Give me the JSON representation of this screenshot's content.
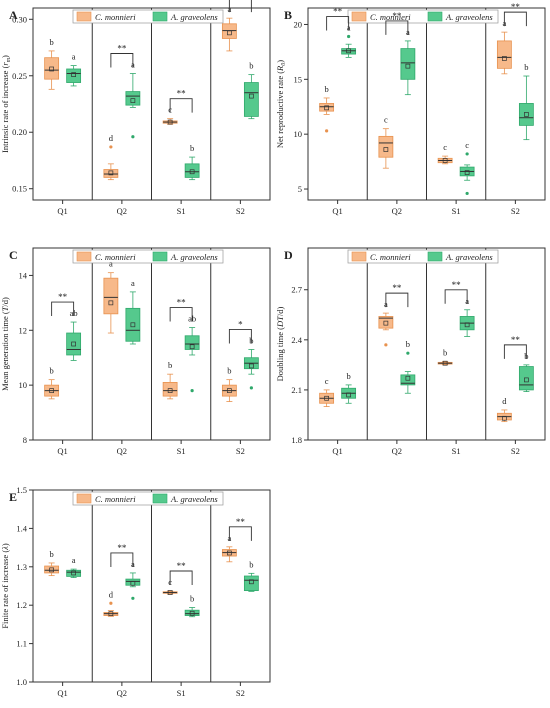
{
  "legend": {
    "series": [
      "C. monnieri",
      "A. graveolens"
    ],
    "colors": [
      "#f7b98a",
      "#55c98d"
    ],
    "edge_colors": [
      "#e8924f",
      "#2fa86b"
    ]
  },
  "chart_data": [
    {
      "type": "box",
      "panel": "A",
      "ylabel_prefix": "Intrinsic rate of increase (",
      "ylabel_symbol": "r",
      "ylabel_sub": "m",
      "ylabel_suffix": ")",
      "ylim": [
        0.14,
        0.31
      ],
      "yticks": [
        "0.15",
        "0.20",
        "0.25",
        "0.30"
      ],
      "categories": [
        "Q1",
        "Q2",
        "S1",
        "S2"
      ],
      "series": [
        {
          "name": "C. monnieri",
          "boxes": [
            {
              "min": 0.238,
              "q1": 0.247,
              "median": 0.255,
              "q3": 0.266,
              "max": 0.272,
              "mean": 0.256,
              "outliers": []
            },
            {
              "min": 0.158,
              "q1": 0.16,
              "median": 0.163,
              "q3": 0.167,
              "max": 0.172,
              "mean": 0.164,
              "outliers": [
                0.187
              ]
            },
            {
              "min": 0.207,
              "q1": 0.208,
              "median": 0.209,
              "q3": 0.21,
              "max": 0.212,
              "mean": 0.209,
              "outliers": []
            },
            {
              "min": 0.272,
              "q1": 0.283,
              "median": 0.29,
              "q3": 0.296,
              "max": 0.301,
              "mean": 0.288,
              "outliers": []
            }
          ]
        },
        {
          "name": "A. graveolens",
          "boxes": [
            {
              "min": 0.241,
              "q1": 0.244,
              "median": 0.252,
              "q3": 0.256,
              "max": 0.259,
              "mean": 0.251,
              "outliers": []
            },
            {
              "min": 0.222,
              "q1": 0.224,
              "median": 0.232,
              "q3": 0.236,
              "max": 0.252,
              "mean": 0.228,
              "outliers": [
                0.196
              ]
            },
            {
              "min": 0.158,
              "q1": 0.16,
              "median": 0.165,
              "q3": 0.172,
              "max": 0.178,
              "mean": 0.165,
              "outliers": []
            },
            {
              "min": 0.212,
              "q1": 0.214,
              "median": 0.235,
              "q3": 0.244,
              "max": 0.251,
              "mean": 0.232,
              "outliers": []
            }
          ]
        }
      ],
      "letters": [
        [
          "b",
          "a"
        ],
        [
          "d",
          "a"
        ],
        [
          "c",
          "b"
        ],
        [
          "a",
          "b"
        ]
      ],
      "significance": [
        "",
        "**",
        "**",
        "**"
      ]
    },
    {
      "type": "box",
      "panel": "B",
      "ylabel_prefix": "Net reproductive rate (",
      "ylabel_symbol": "R",
      "ylabel_sub": "0",
      "ylabel_suffix": ")",
      "ylim": [
        4,
        21.5
      ],
      "yticks": [
        "5",
        "10",
        "15",
        "20"
      ],
      "categories": [
        "Q1",
        "Q2",
        "S1",
        "S2"
      ],
      "series": [
        {
          "name": "C. monnieri",
          "boxes": [
            {
              "min": 11.8,
              "q1": 12.1,
              "median": 12.5,
              "q3": 12.8,
              "max": 13.3,
              "mean": 12.4,
              "outliers": [
                10.3
              ]
            },
            {
              "min": 6.9,
              "q1": 7.9,
              "median": 9.2,
              "q3": 9.8,
              "max": 10.5,
              "mean": 8.6,
              "outliers": []
            },
            {
              "min": 7.3,
              "q1": 7.4,
              "median": 7.6,
              "q3": 7.8,
              "max": 8.0,
              "mean": 7.6,
              "outliers": []
            },
            {
              "min": 15.5,
              "q1": 16.0,
              "median": 17.0,
              "q3": 18.5,
              "max": 19.3,
              "mean": 16.9,
              "outliers": []
            }
          ]
        },
        {
          "name": "A. graveolens",
          "boxes": [
            {
              "min": 17.0,
              "q1": 17.3,
              "median": 17.6,
              "q3": 17.8,
              "max": 18.2,
              "mean": 17.6,
              "outliers": [
                18.9
              ]
            },
            {
              "min": 13.6,
              "q1": 15.0,
              "median": 16.5,
              "q3": 17.8,
              "max": 18.5,
              "mean": 16.2,
              "outliers": []
            },
            {
              "min": 5.8,
              "q1": 6.2,
              "median": 6.6,
              "q3": 7.0,
              "max": 7.2,
              "mean": 6.5,
              "outliers": [
                4.6,
                8.2
              ]
            },
            {
              "min": 9.5,
              "q1": 10.8,
              "median": 11.5,
              "q3": 12.8,
              "max": 15.3,
              "mean": 11.8,
              "outliers": []
            }
          ]
        }
      ],
      "letters": [
        [
          "b",
          "a"
        ],
        [
          "c",
          "a"
        ],
        [
          "c",
          "c"
        ],
        [
          "a",
          "b"
        ]
      ],
      "significance": [
        "**",
        "**",
        "",
        "**"
      ]
    },
    {
      "type": "box",
      "panel": "C",
      "ylabel_prefix": "Mean generation time (",
      "ylabel_symbol": "T",
      "ylabel_sub": "",
      "ylabel_suffix": "/d)",
      "ylim": [
        8,
        15
      ],
      "yticks": [
        "8",
        "10",
        "12",
        "14"
      ],
      "categories": [
        "Q1",
        "Q2",
        "S1",
        "S2"
      ],
      "series": [
        {
          "name": "C. monnieri",
          "boxes": [
            {
              "min": 9.5,
              "q1": 9.6,
              "median": 9.8,
              "q3": 10.0,
              "max": 10.2,
              "mean": 9.8,
              "outliers": []
            },
            {
              "min": 11.9,
              "q1": 12.6,
              "median": 13.2,
              "q3": 13.9,
              "max": 14.1,
              "mean": 13.0,
              "outliers": []
            },
            {
              "min": 9.5,
              "q1": 9.6,
              "median": 9.8,
              "q3": 10.1,
              "max": 10.4,
              "mean": 9.8,
              "outliers": []
            },
            {
              "min": 9.4,
              "q1": 9.6,
              "median": 9.8,
              "q3": 10.0,
              "max": 10.2,
              "mean": 9.8,
              "outliers": []
            }
          ]
        },
        {
          "name": "A. graveolens",
          "boxes": [
            {
              "min": 10.9,
              "q1": 11.1,
              "median": 11.3,
              "q3": 11.9,
              "max": 12.3,
              "mean": 11.5,
              "outliers": []
            },
            {
              "min": 11.5,
              "q1": 11.6,
              "median": 12.0,
              "q3": 12.8,
              "max": 13.4,
              "mean": 12.2,
              "outliers": []
            },
            {
              "min": 11.1,
              "q1": 11.3,
              "median": 11.5,
              "q3": 11.8,
              "max": 12.1,
              "mean": 11.4,
              "outliers": [
                9.8
              ]
            },
            {
              "min": 10.4,
              "q1": 10.6,
              "median": 10.8,
              "q3": 11.0,
              "max": 11.3,
              "mean": 10.7,
              "outliers": [
                9.9
              ]
            }
          ]
        }
      ],
      "letters": [
        [
          "b",
          "ab"
        ],
        [
          "a",
          "a"
        ],
        [
          "b",
          "ab"
        ],
        [
          "b",
          "b"
        ]
      ],
      "significance": [
        "**",
        "",
        "**",
        "*"
      ]
    },
    {
      "type": "box",
      "panel": "D",
      "ylabel_prefix": "Doubling time (",
      "ylabel_symbol": "DT",
      "ylabel_sub": "",
      "ylabel_suffix": "/d)",
      "ylim": [
        1.8,
        2.95
      ],
      "yticks": [
        "1.8",
        "2.1",
        "2.4",
        "2.7"
      ],
      "categories": [
        "Q1",
        "Q2",
        "S1",
        "S2"
      ],
      "series": [
        {
          "name": "C. monnieri",
          "boxes": [
            {
              "min": 2.0,
              "q1": 2.02,
              "median": 2.05,
              "q3": 2.08,
              "max": 2.1,
              "mean": 2.05,
              "outliers": []
            },
            {
              "min": 2.46,
              "q1": 2.47,
              "median": 2.53,
              "q3": 2.54,
              "max": 2.56,
              "mean": 2.5,
              "outliers": [
                2.37
              ]
            },
            {
              "min": 2.25,
              "q1": 2.255,
              "median": 2.26,
              "q3": 2.265,
              "max": 2.27,
              "mean": 2.26,
              "outliers": []
            },
            {
              "min": 1.91,
              "q1": 1.92,
              "median": 1.94,
              "q3": 1.96,
              "max": 1.98,
              "mean": 1.93,
              "outliers": []
            }
          ]
        },
        {
          "name": "A. graveolens",
          "boxes": [
            {
              "min": 2.02,
              "q1": 2.05,
              "median": 2.08,
              "q3": 2.11,
              "max": 2.13,
              "mean": 2.07,
              "outliers": []
            },
            {
              "min": 2.08,
              "q1": 2.13,
              "median": 2.14,
              "q3": 2.19,
              "max": 2.21,
              "mean": 2.17,
              "outliers": [
                2.32
              ]
            },
            {
              "min": 2.42,
              "q1": 2.46,
              "median": 2.5,
              "q3": 2.54,
              "max": 2.58,
              "mean": 2.49,
              "outliers": []
            },
            {
              "min": 2.09,
              "q1": 2.1,
              "median": 2.13,
              "q3": 2.24,
              "max": 2.25,
              "mean": 2.16,
              "outliers": []
            }
          ]
        }
      ],
      "letters": [
        [
          "c",
          "b"
        ],
        [
          "a",
          "b"
        ],
        [
          "b",
          "a"
        ],
        [
          "d",
          "b"
        ]
      ],
      "significance": [
        "",
        "**",
        "**",
        "**"
      ]
    },
    {
      "type": "box",
      "panel": "E",
      "ylabel_prefix": "Finite rate of increase (",
      "ylabel_symbol": "λ",
      "ylabel_sub": "",
      "ylabel_suffix": ")",
      "ylim": [
        1.0,
        1.5
      ],
      "yticks": [
        "1.0",
        "1.1",
        "1.2",
        "1.3",
        "1.4",
        "1.5"
      ],
      "categories": [
        "Q1",
        "Q2",
        "S1",
        "S2"
      ],
      "series": [
        {
          "name": "C. monnieri",
          "boxes": [
            {
              "min": 1.277,
              "q1": 1.284,
              "median": 1.291,
              "q3": 1.302,
              "max": 1.31,
              "mean": 1.292,
              "outliers": []
            },
            {
              "min": 1.171,
              "q1": 1.173,
              "median": 1.178,
              "q3": 1.181,
              "max": 1.186,
              "mean": 1.178,
              "outliers": [
                1.205
              ]
            },
            {
              "min": 1.229,
              "q1": 1.231,
              "median": 1.233,
              "q3": 1.235,
              "max": 1.237,
              "mean": 1.233,
              "outliers": []
            },
            {
              "min": 1.313,
              "q1": 1.328,
              "median": 1.337,
              "q3": 1.345,
              "max": 1.352,
              "mean": 1.336,
              "outliers": []
            }
          ]
        },
        {
          "name": "A. graveolens",
          "boxes": [
            {
              "min": 1.272,
              "q1": 1.275,
              "median": 1.286,
              "q3": 1.291,
              "max": 1.294,
              "mean": 1.284,
              "outliers": []
            },
            {
              "min": 1.248,
              "q1": 1.252,
              "median": 1.262,
              "q3": 1.268,
              "max": 1.284,
              "mean": 1.257,
              "outliers": [
                1.218
              ]
            },
            {
              "min": 1.17,
              "q1": 1.173,
              "median": 1.178,
              "q3": 1.187,
              "max": 1.194,
              "mean": 1.179,
              "outliers": []
            },
            {
              "min": 1.236,
              "q1": 1.238,
              "median": 1.265,
              "q3": 1.276,
              "max": 1.283,
              "mean": 1.261,
              "outliers": []
            }
          ]
        }
      ],
      "letters": [
        [
          "b",
          "a"
        ],
        [
          "d",
          "a"
        ],
        [
          "c",
          "b"
        ],
        [
          "a",
          "b"
        ]
      ],
      "significance": [
        "",
        "**",
        "**",
        "**"
      ]
    }
  ]
}
